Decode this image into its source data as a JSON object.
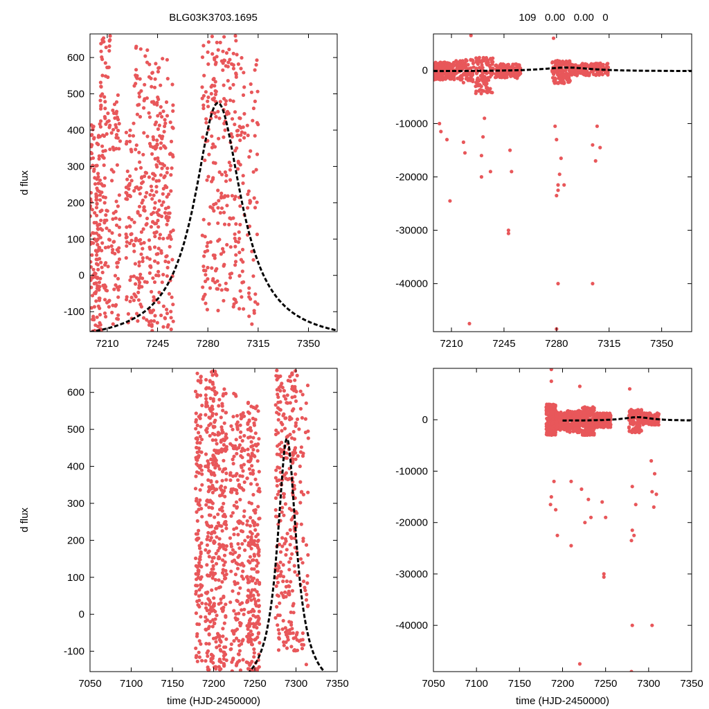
{
  "figure": {
    "title": "BLG03K3703.1695",
    "stats_label": "109   0.00   0.00   0"
  },
  "colors": {
    "points": "#e8575a",
    "model": "#000000"
  },
  "chart_data": [
    {
      "type": "scatter",
      "panel": "top-left",
      "title": "BLG03K3703.1695",
      "xlabel": "",
      "ylabel": "d flux",
      "xlim": [
        7198,
        7370
      ],
      "ylim": [
        -155,
        665
      ],
      "xticks": [
        7210,
        7245,
        7280,
        7315,
        7350
      ],
      "yticks": [
        -100,
        0,
        100,
        200,
        300,
        400,
        500,
        600
      ],
      "clusters": [
        {
          "x": [
            7198,
            7205
          ],
          "y": [
            -155,
            420
          ],
          "n": 140
        },
        {
          "x": [
            7205,
            7212
          ],
          "y": [
            -155,
            660
          ],
          "n": 110
        },
        {
          "x": [
            7213,
            7219
          ],
          "y": [
            -150,
            500
          ],
          "n": 70
        },
        {
          "x": [
            7223,
            7227
          ],
          "y": [
            -130,
            400
          ],
          "n": 50
        },
        {
          "x": [
            7228,
            7238
          ],
          "y": [
            -130,
            640
          ],
          "n": 110
        },
        {
          "x": [
            7239,
            7256
          ],
          "y": [
            -155,
            600
          ],
          "n": 220
        },
        {
          "x": [
            7276,
            7306
          ],
          "y": [
            -100,
            660
          ],
          "n": 270
        },
        {
          "x": [
            7307,
            7315
          ],
          "y": [
            -150,
            650
          ],
          "n": 45
        }
      ],
      "model": {
        "t0": 7287,
        "peak": 475,
        "tau": 20,
        "baseline": -188,
        "x_range": [
          7198,
          7370
        ]
      }
    },
    {
      "type": "scatter",
      "panel": "top-right",
      "title": "109   0.00   0.00   0",
      "xlabel": "",
      "ylabel": "",
      "xlim": [
        7198,
        7370
      ],
      "ylim": [
        -49000,
        6800
      ],
      "xticks": [
        7210,
        7245,
        7280,
        7315,
        7350
      ],
      "yticks": [
        -40000,
        -30000,
        -20000,
        -10000,
        0
      ],
      "clusters": [
        {
          "x": [
            7198,
            7212
          ],
          "y": [
            -1800,
            1500
          ],
          "n": 170
        },
        {
          "x": [
            7213,
            7225
          ],
          "y": [
            -2500,
            2000
          ],
          "n": 90
        },
        {
          "x": [
            7226,
            7238
          ],
          "y": [
            -4500,
            2600
          ],
          "n": 110
        },
        {
          "x": [
            7239,
            7256
          ],
          "y": [
            -1500,
            1200
          ],
          "n": 170
        },
        {
          "x": [
            7277,
            7290
          ],
          "y": [
            -2500,
            1800
          ],
          "n": 140
        },
        {
          "x": [
            7290,
            7315
          ],
          "y": [
            -1000,
            1300
          ],
          "n": 160
        }
      ],
      "outliers": [
        {
          "x": 7202,
          "y": -10000
        },
        {
          "x": 7203,
          "y": -11500
        },
        {
          "x": 7207,
          "y": -13000
        },
        {
          "x": 7209,
          "y": -24500
        },
        {
          "x": 7222,
          "y": -47500
        },
        {
          "x": 7223,
          "y": 6500
        },
        {
          "x": 7218,
          "y": -13500
        },
        {
          "x": 7219,
          "y": -15500
        },
        {
          "x": 7230,
          "y": -20000
        },
        {
          "x": 7230,
          "y": -16000
        },
        {
          "x": 7231,
          "y": -12500
        },
        {
          "x": 7232,
          "y": -9000
        },
        {
          "x": 7236,
          "y": -19000
        },
        {
          "x": 7248,
          "y": -30000
        },
        {
          "x": 7248,
          "y": -30600
        },
        {
          "x": 7249,
          "y": -15000
        },
        {
          "x": 7250,
          "y": -19000
        },
        {
          "x": 7278,
          "y": 6000
        },
        {
          "x": 7280,
          "y": -48500
        },
        {
          "x": 7281,
          "y": -40000
        },
        {
          "x": 7281,
          "y": -21500
        },
        {
          "x": 7281,
          "y": -22500
        },
        {
          "x": 7280,
          "y": -23500
        },
        {
          "x": 7282,
          "y": -19500
        },
        {
          "x": 7283,
          "y": -16500
        },
        {
          "x": 7285,
          "y": -21500
        },
        {
          "x": 7304,
          "y": -40000
        },
        {
          "x": 7304,
          "y": -14000
        },
        {
          "x": 7306,
          "y": -17000
        },
        {
          "x": 7307,
          "y": -10500
        },
        {
          "x": 7309,
          "y": -14500
        },
        {
          "x": 7280,
          "y": -13000
        },
        {
          "x": 7279,
          "y": -10500
        }
      ],
      "model": {
        "t0": 7287,
        "peak": 500,
        "tau": 20,
        "baseline": -188,
        "x_range": [
          7198,
          7370
        ]
      }
    },
    {
      "type": "scatter",
      "panel": "bottom-left",
      "title": "",
      "xlabel": "time (HJD-2450000)",
      "ylabel": "d flux",
      "xlim": [
        7050,
        7350
      ],
      "ylim": [
        -155,
        665
      ],
      "xticks": [
        7050,
        7100,
        7150,
        7200,
        7250,
        7300,
        7350
      ],
      "yticks": [
        -100,
        0,
        100,
        200,
        300,
        400,
        500,
        600
      ],
      "clusters": [
        {
          "x": [
            7178,
            7186
          ],
          "y": [
            -155,
            660
          ],
          "n": 130
        },
        {
          "x": [
            7190,
            7204
          ],
          "y": [
            -155,
            660
          ],
          "n": 230
        },
        {
          "x": [
            7205,
            7216
          ],
          "y": [
            -155,
            610
          ],
          "n": 150
        },
        {
          "x": [
            7220,
            7238
          ],
          "y": [
            -155,
            600
          ],
          "n": 170
        },
        {
          "x": [
            7240,
            7256
          ],
          "y": [
            -155,
            580
          ],
          "n": 220
        },
        {
          "x": [
            7275,
            7300
          ],
          "y": [
            -100,
            660
          ],
          "n": 250
        },
        {
          "x": [
            7300,
            7315
          ],
          "y": [
            -150,
            650
          ],
          "n": 60
        }
      ],
      "model": {
        "t0": 7289,
        "peak": 475,
        "tau": 14,
        "baseline": -215,
        "x_range": [
          7200,
          7350
        ]
      }
    },
    {
      "type": "scatter",
      "panel": "bottom-right",
      "title": "",
      "xlabel": "time (HJD-2450000)",
      "ylabel": "",
      "xlim": [
        7050,
        7350
      ],
      "ylim": [
        -49000,
        10000
      ],
      "xticks": [
        7050,
        7100,
        7150,
        7200,
        7250,
        7300,
        7350
      ],
      "yticks": [
        -40000,
        -30000,
        -20000,
        -10000,
        0
      ],
      "clusters": [
        {
          "x": [
            7181,
            7192
          ],
          "y": [
            -3000,
            3000
          ],
          "n": 200
        },
        {
          "x": [
            7192,
            7205
          ],
          "y": [
            -2000,
            1500
          ],
          "n": 150
        },
        {
          "x": [
            7205,
            7222
          ],
          "y": [
            -2500,
            1800
          ],
          "n": 160
        },
        {
          "x": [
            7222,
            7237
          ],
          "y": [
            -3000,
            2500
          ],
          "n": 150
        },
        {
          "x": [
            7238,
            7256
          ],
          "y": [
            -1500,
            1300
          ],
          "n": 150
        },
        {
          "x": [
            7277,
            7292
          ],
          "y": [
            -2500,
            2000
          ],
          "n": 150
        },
        {
          "x": [
            7292,
            7312
          ],
          "y": [
            -1000,
            1300
          ],
          "n": 150
        }
      ],
      "outliers": [
        {
          "x": 7187,
          "y": 9800
        },
        {
          "x": 7187,
          "y": 7500
        },
        {
          "x": 7186,
          "y": -16500
        },
        {
          "x": 7187,
          "y": -15000
        },
        {
          "x": 7190,
          "y": -12000
        },
        {
          "x": 7192,
          "y": -17500
        },
        {
          "x": 7194,
          "y": -22500
        },
        {
          "x": 7210,
          "y": -24500
        },
        {
          "x": 7210,
          "y": -12000
        },
        {
          "x": 7220,
          "y": 6500
        },
        {
          "x": 7220,
          "y": -47500
        },
        {
          "x": 7222,
          "y": -13500
        },
        {
          "x": 7226,
          "y": -20000
        },
        {
          "x": 7233,
          "y": -19000
        },
        {
          "x": 7230,
          "y": -15500
        },
        {
          "x": 7248,
          "y": -30000
        },
        {
          "x": 7248,
          "y": -30600
        },
        {
          "x": 7246,
          "y": -16000
        },
        {
          "x": 7250,
          "y": -19000
        },
        {
          "x": 7278,
          "y": 6000
        },
        {
          "x": 7280,
          "y": -49000
        },
        {
          "x": 7281,
          "y": -40000
        },
        {
          "x": 7281,
          "y": -21500
        },
        {
          "x": 7280,
          "y": -23500
        },
        {
          "x": 7283,
          "y": -22500
        },
        {
          "x": 7285,
          "y": -16500
        },
        {
          "x": 7281,
          "y": -13000
        },
        {
          "x": 7304,
          "y": -40000
        },
        {
          "x": 7304,
          "y": -14000
        },
        {
          "x": 7306,
          "y": -17000
        },
        {
          "x": 7307,
          "y": -10500
        },
        {
          "x": 7309,
          "y": -14500
        },
        {
          "x": 7303,
          "y": -8000
        }
      ],
      "model": {
        "t0": 7287,
        "peak": 500,
        "tau": 20,
        "baseline": -188,
        "x_range": [
          7200,
          7350
        ]
      }
    }
  ]
}
